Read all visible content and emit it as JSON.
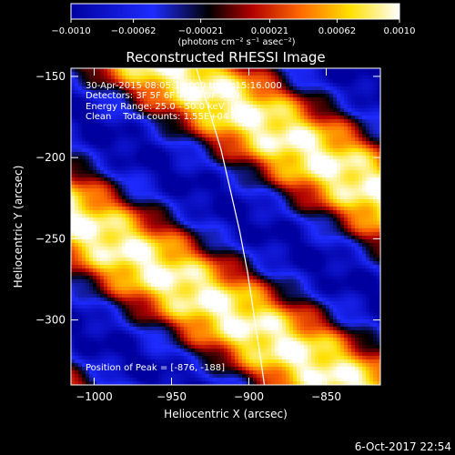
{
  "chart_data": {
    "type": "heatmap",
    "title": "Reconstructed RHESSI Image",
    "xlabel": "Heliocentric X (arcsec)",
    "ylabel": "Heliocentric Y (arcsec)",
    "xlim": [
      -1015,
      -815
    ],
    "ylim": [
      -340,
      -145
    ],
    "x_ticks": [
      -1000,
      -950,
      -900,
      -850
    ],
    "x_tick_labels": [
      "−1000",
      "−950",
      "−900",
      "−850"
    ],
    "y_ticks": [
      -150,
      -200,
      -250,
      -300
    ],
    "y_tick_labels": [
      "−150",
      "−200",
      "−250",
      "−300"
    ],
    "colorbar": {
      "range": [
        -0.001,
        0.001
      ],
      "ticks": [
        -0.001,
        -0.00062,
        -0.00021,
        0.00021,
        0.00062,
        0.001
      ],
      "tick_labels": [
        "−0.0010",
        "−0.00062",
        "−0.00021",
        "0.00021",
        "0.00062",
        "0.0010"
      ],
      "unit_label": "(photons cm⁻² s⁻¹ asec⁻²)",
      "colormap": "blue-red-yellow-white"
    },
    "info_lines": [
      "30-Apr-2015 08:05:16.000 to 08:15:16.000",
      "Detectors: 3F 5F 6F 7F 8F 9F 3R 9",
      "Energy Range: 25.0 - 50.0 keV",
      "Clean    Total counts: 1.55E+04"
    ],
    "peak_text": "Position of Peak = [-876, -188]",
    "limb_points": [
      [
        -934,
        -145
      ],
      [
        -926,
        -170
      ],
      [
        -918,
        -195
      ],
      [
        -912,
        -220
      ],
      [
        -906,
        -245
      ],
      [
        -901,
        -270
      ],
      [
        -897,
        -295
      ],
      [
        -893,
        -320
      ],
      [
        -890,
        -340
      ]
    ],
    "stripe_angle_deg": 30,
    "stripe_period_arcsec": 112,
    "footer": "6-Oct-2017 22:54"
  },
  "colors": {
    "background": "#000000",
    "text": "#ffffff",
    "limb": "#ffffff"
  }
}
